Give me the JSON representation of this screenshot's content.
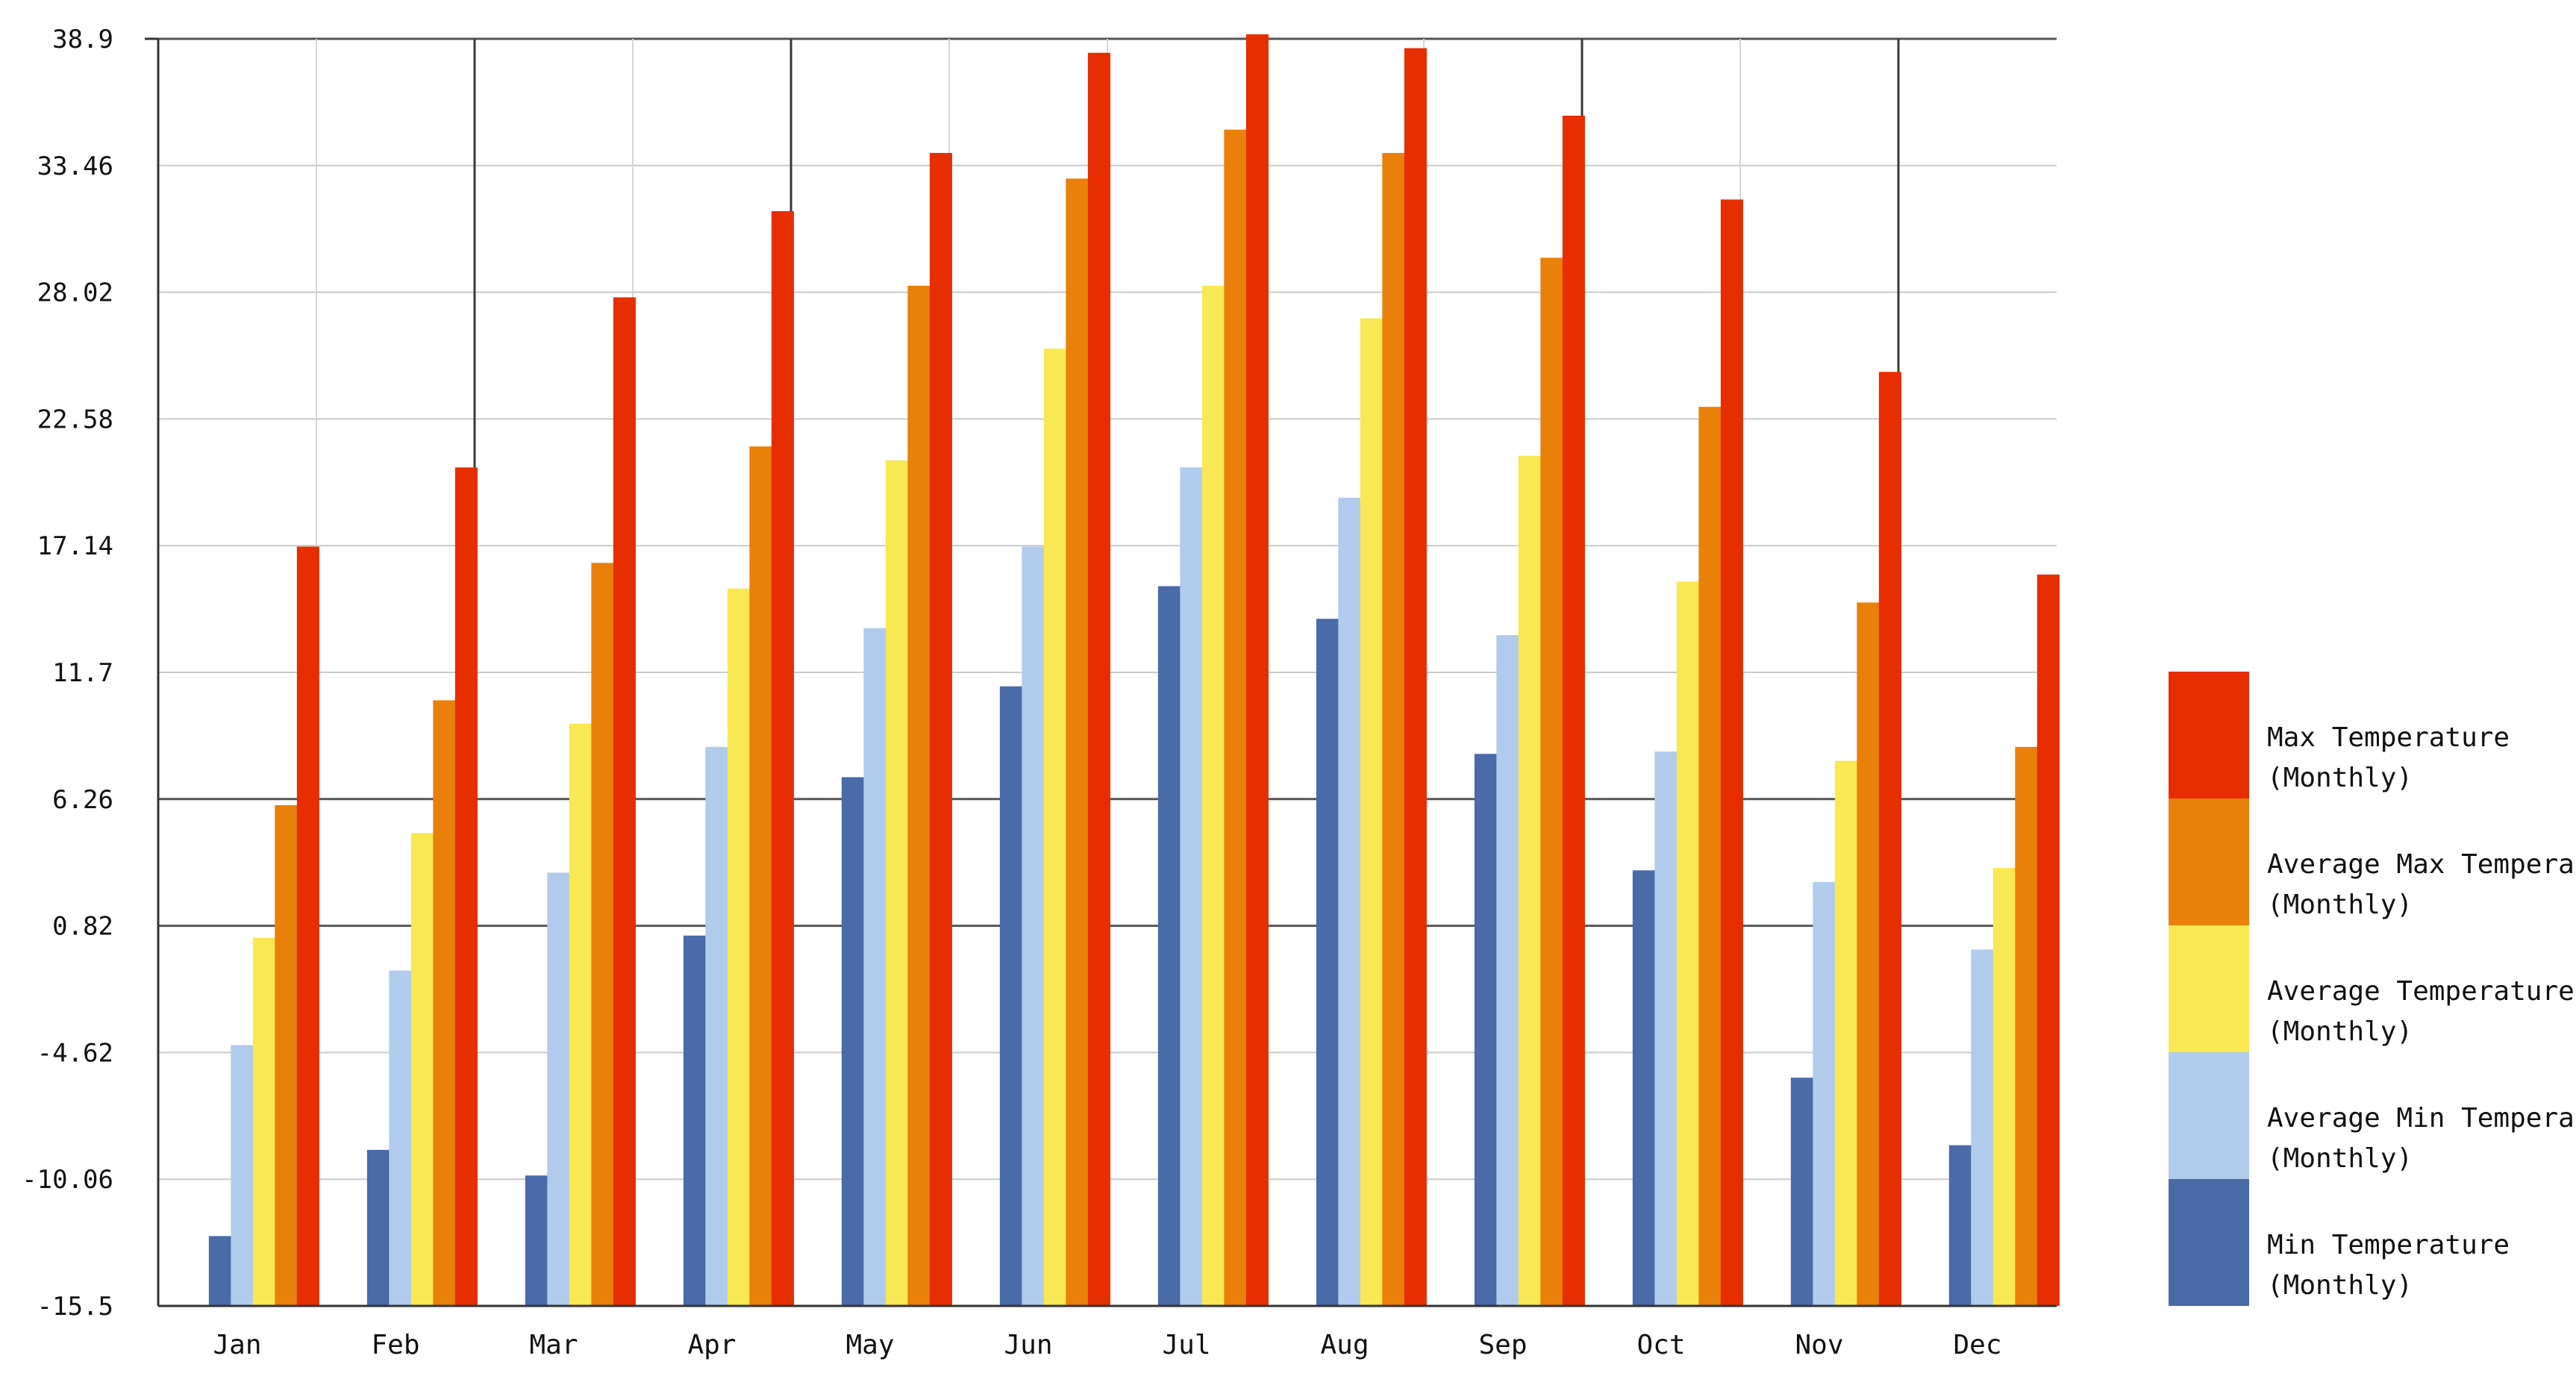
{
  "chart_data": {
    "type": "bar",
    "title": "",
    "xlabel": "",
    "ylabel": "",
    "ylim": [
      -15.5,
      38.9
    ],
    "yticks": [
      "38.9",
      "33.46",
      "28.02",
      "22.58",
      "17.14",
      "11.7",
      "6.26",
      "0.82",
      "-4.62",
      "-10.06",
      "-15.5"
    ],
    "categories": [
      "Jan",
      "Feb",
      "Mar",
      "Apr",
      "May",
      "Jun",
      "Jul",
      "Aug",
      "Sep",
      "Oct",
      "Nov",
      "Dec"
    ],
    "grid": true,
    "legend_position": "right",
    "series": [
      {
        "name": "Min Temperature (Monthly)",
        "legend_lines": [
          "Min Temperature",
          "(Monthly)"
        ],
        "color": "#4a6aa8",
        "values": [
          -12.5,
          -8.8,
          -9.9,
          0.4,
          7.2,
          11.1,
          15.4,
          14.0,
          8.2,
          3.2,
          -5.7,
          -8.6
        ]
      },
      {
        "name": "Average Min Temperature (Monthly)",
        "legend_lines": [
          "Average Min Temperature",
          "(Monthly)"
        ],
        "color": "#b1cbed",
        "values": [
          -4.3,
          -1.1,
          3.1,
          8.5,
          13.6,
          17.1,
          20.5,
          19.2,
          13.3,
          8.3,
          2.7,
          -0.2
        ]
      },
      {
        "name": "Average Temperature (Monthly)",
        "legend_lines": [
          "Average Temperature",
          "(Monthly)"
        ],
        "color": "#f8e853",
        "values": [
          0.3,
          4.8,
          9.5,
          15.3,
          20.8,
          25.6,
          28.3,
          26.9,
          21.0,
          15.6,
          7.9,
          3.3
        ]
      },
      {
        "name": "Average Max Temperature (Monthly)",
        "legend_lines": [
          "Average Max Temperature",
          "(Monthly)"
        ],
        "color": "#e8800a",
        "values": [
          6.0,
          10.5,
          16.4,
          21.4,
          28.3,
          32.9,
          35.0,
          34.0,
          29.5,
          23.1,
          14.7,
          8.5
        ]
      },
      {
        "name": "Max Temperature (Monthly)",
        "legend_lines": [
          "Max Temperature",
          "(Monthly)"
        ],
        "color": "#e62e00",
        "values": [
          17.1,
          20.5,
          27.8,
          31.5,
          34.0,
          38.3,
          39.2,
          38.5,
          35.6,
          32.0,
          24.6,
          15.9
        ]
      }
    ]
  }
}
